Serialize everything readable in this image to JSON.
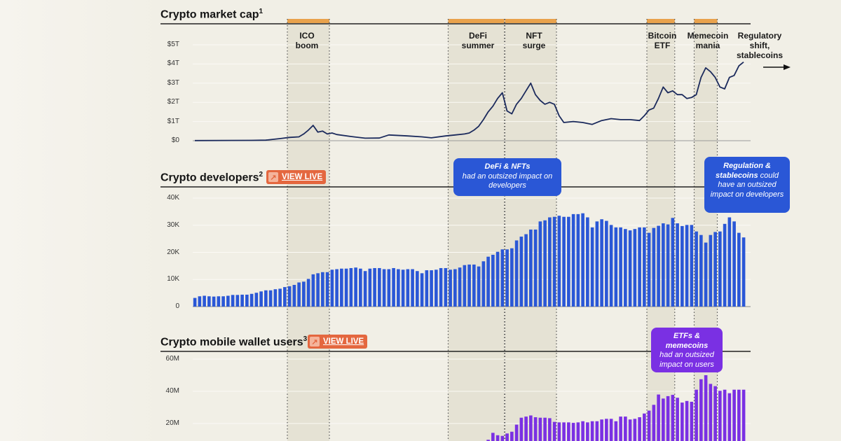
{
  "colors": {
    "background": "#f1efe6",
    "band": "#e5e2d4",
    "band_marker": "#e9a24c",
    "market_line": "#1b2a5c",
    "developers": "#2a57d6",
    "wallets": "#7a30e3",
    "view_live": "#e4673f"
  },
  "bands": [
    {
      "label_line1": "ICO",
      "label_line2": "boom",
      "start": "2017-08",
      "end": "2018-04"
    },
    {
      "label_line1": "DeFi",
      "label_line2": "summer",
      "start": "2020-06",
      "end": "2021-05"
    },
    {
      "label_line1": "NFT",
      "label_line2": "surge",
      "start": "2021-06",
      "end": "2022-04"
    },
    {
      "label_line1": "Bitcoin",
      "label_line2": "ETF",
      "start": "2023-12",
      "end": "2024-05"
    },
    {
      "label_line1": "Memecoin",
      "label_line2": "mania",
      "start": "2024-10",
      "end": "2025-02"
    }
  ],
  "future_label": {
    "line1": "Regulatory",
    "line2": "shift,",
    "line3": "stablecoins",
    "icon": "arrow-right-icon"
  },
  "view_live_label": "VIEW LIVE",
  "view_live_icon": "arrow-up-right-icon",
  "chart_data": [
    {
      "type": "line",
      "title": "Crypto market cap",
      "footnote": "1",
      "yticks": [
        "$0",
        "$1T",
        "$2T",
        "$3T",
        "$4T",
        "$5T"
      ],
      "ylim": [
        0,
        5
      ],
      "unit": "trillion USD",
      "grid": true,
      "points": [
        [
          "2015-12",
          0.007
        ],
        [
          "2016-12",
          0.02
        ],
        [
          "2017-03",
          0.03
        ],
        [
          "2017-06",
          0.11
        ],
        [
          "2017-08",
          0.17
        ],
        [
          "2017-10",
          0.2
        ],
        [
          "2017-11",
          0.35
        ],
        [
          "2017-12",
          0.55
        ],
        [
          "2018-01",
          0.8
        ],
        [
          "2018-02",
          0.45
        ],
        [
          "2018-03",
          0.5
        ],
        [
          "2018-04",
          0.35
        ],
        [
          "2018-05",
          0.4
        ],
        [
          "2018-06",
          0.32
        ],
        [
          "2018-09",
          0.22
        ],
        [
          "2018-12",
          0.13
        ],
        [
          "2019-03",
          0.14
        ],
        [
          "2019-05",
          0.3
        ],
        [
          "2019-09",
          0.25
        ],
        [
          "2019-12",
          0.2
        ],
        [
          "2020-02",
          0.15
        ],
        [
          "2020-05",
          0.25
        ],
        [
          "2020-07",
          0.3
        ],
        [
          "2020-09",
          0.35
        ],
        [
          "2020-10",
          0.4
        ],
        [
          "2020-11",
          0.55
        ],
        [
          "2020-12",
          0.75
        ],
        [
          "2021-01",
          1.1
        ],
        [
          "2021-02",
          1.5
        ],
        [
          "2021-03",
          1.8
        ],
        [
          "2021-04",
          2.2
        ],
        [
          "2021-05",
          2.5
        ],
        [
          "2021-06",
          1.55
        ],
        [
          "2021-07",
          1.4
        ],
        [
          "2021-08",
          1.9
        ],
        [
          "2021-09",
          2.2
        ],
        [
          "2021-10",
          2.6
        ],
        [
          "2021-11",
          3.0
        ],
        [
          "2021-12",
          2.4
        ],
        [
          "2022-01",
          2.1
        ],
        [
          "2022-02",
          1.9
        ],
        [
          "2022-03",
          2.0
        ],
        [
          "2022-04",
          1.9
        ],
        [
          "2022-05",
          1.3
        ],
        [
          "2022-06",
          0.95
        ],
        [
          "2022-08",
          1.0
        ],
        [
          "2022-10",
          0.95
        ],
        [
          "2022-12",
          0.85
        ],
        [
          "2023-02",
          1.05
        ],
        [
          "2023-04",
          1.15
        ],
        [
          "2023-06",
          1.1
        ],
        [
          "2023-08",
          1.1
        ],
        [
          "2023-10",
          1.05
        ],
        [
          "2023-11",
          1.3
        ],
        [
          "2023-12",
          1.6
        ],
        [
          "2024-01",
          1.7
        ],
        [
          "2024-02",
          2.2
        ],
        [
          "2024-03",
          2.8
        ],
        [
          "2024-04",
          2.5
        ],
        [
          "2024-05",
          2.6
        ],
        [
          "2024-06",
          2.4
        ],
        [
          "2024-07",
          2.4
        ],
        [
          "2024-08",
          2.2
        ],
        [
          "2024-09",
          2.25
        ],
        [
          "2024-10",
          2.4
        ],
        [
          "2024-11",
          3.3
        ],
        [
          "2024-12",
          3.8
        ],
        [
          "2025-01",
          3.6
        ],
        [
          "2025-02",
          3.3
        ],
        [
          "2025-03",
          2.8
        ],
        [
          "2025-04",
          2.7
        ],
        [
          "2025-05",
          3.3
        ],
        [
          "2025-06",
          3.4
        ],
        [
          "2025-07",
          3.9
        ],
        [
          "2025-08",
          4.1
        ]
      ]
    },
    {
      "type": "bar",
      "title": "Crypto developers",
      "footnote": "2",
      "yticks": [
        "0",
        "10K",
        "20K",
        "30K",
        "40K"
      ],
      "ylim": [
        0,
        40
      ],
      "unit": "thousand developers",
      "grid": true,
      "start_month": "2015-12",
      "values": [
        3.2,
        3.8,
        4.0,
        3.8,
        3.7,
        3.8,
        3.8,
        4.0,
        4.3,
        4.3,
        4.4,
        4.4,
        4.7,
        5.1,
        5.6,
        6.0,
        6.0,
        6.4,
        6.6,
        7.2,
        7.5,
        8.0,
        8.9,
        9.2,
        10.2,
        11.9,
        12.3,
        12.7,
        12.7,
        13.6,
        13.8,
        14.0,
        14.0,
        14.2,
        14.4,
        14.0,
        13.1,
        14.0,
        14.2,
        14.2,
        13.8,
        13.8,
        14.2,
        13.8,
        13.6,
        13.8,
        13.8,
        13.1,
        12.3,
        13.4,
        13.4,
        13.6,
        14.2,
        14.2,
        13.6,
        13.8,
        14.4,
        15.3,
        15.5,
        15.5,
        14.8,
        16.7,
        18.4,
        19.1,
        20.2,
        21.1,
        21.1,
        21.5,
        24.4,
        25.8,
        26.7,
        28.4,
        28.4,
        31.4,
        31.8,
        32.9,
        33.1,
        33.5,
        33.1,
        33.1,
        34.1,
        34.1,
        34.4,
        32.9,
        29.2,
        31.4,
        32.2,
        31.6,
        30.1,
        29.2,
        29.2,
        28.6,
        28.1,
        28.6,
        29.2,
        29.2,
        27.2,
        29.0,
        29.8,
        30.7,
        30.3,
        32.7,
        30.7,
        29.7,
        30.1,
        30.1,
        27.7,
        26.4,
        23.6,
        26.4,
        27.5,
        27.7,
        30.5,
        32.9,
        31.4,
        27.2,
        25.5
      ],
      "annotations": [
        {
          "bold": "DeFi & NFTs",
          "text": "had an outsized impact on developers"
        },
        {
          "bold": "Regulation & stablecoins",
          "text": "could have an outsized impact on developers"
        }
      ]
    },
    {
      "type": "bar",
      "title": "Crypto mobile wallet users",
      "footnote": "3",
      "yticks": [
        "20M",
        "40M",
        "60M"
      ],
      "ylim": [
        0,
        60
      ],
      "unit": "million users",
      "grid": true,
      "start_month": "2021-02",
      "values": [
        9.9,
        14.2,
        12.7,
        12.3,
        13.8,
        14.9,
        19.3,
        23.6,
        24.3,
        25,
        23.9,
        23.6,
        23.6,
        23.3,
        21,
        20.7,
        20.7,
        20.7,
        20.4,
        20.7,
        21.4,
        20.7,
        21.4,
        21.4,
        22.5,
        22.9,
        22.9,
        21.4,
        24.3,
        24.3,
        22.5,
        22.9,
        23.9,
        26.2,
        28,
        31.6,
        38,
        35.5,
        37,
        37.8,
        36,
        33,
        34,
        33.5,
        41,
        47.5,
        50,
        44.6,
        43.2,
        40.3,
        41,
        38.8,
        41,
        41,
        41
      ],
      "annotations": [
        {
          "bold": "ETFs & memecoins",
          "text": "had an outsized impact on users"
        }
      ]
    }
  ]
}
